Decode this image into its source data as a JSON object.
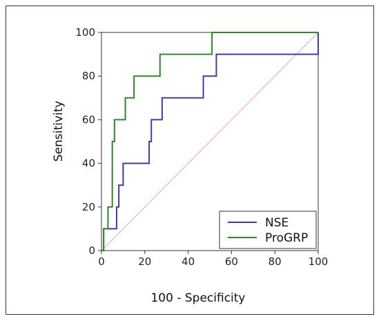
{
  "chart_data": {
    "type": "line",
    "title": "",
    "xlabel": "100 - Specificity",
    "ylabel": "Sensitivity",
    "xlim": [
      0,
      100
    ],
    "ylim": [
      0,
      100
    ],
    "xticks": [
      0,
      20,
      40,
      60,
      80,
      100
    ],
    "yticks": [
      0,
      20,
      40,
      60,
      80,
      100
    ],
    "grid": false,
    "legend_position": "bottom-right",
    "reference_line": {
      "from": [
        0,
        0
      ],
      "to": [
        100,
        100
      ],
      "color": "#e8a8a8"
    },
    "series": [
      {
        "name": "NSE",
        "color": "#3b3dab",
        "points": [
          [
            0,
            0
          ],
          [
            1,
            0
          ],
          [
            1,
            10
          ],
          [
            7,
            10
          ],
          [
            7,
            20
          ],
          [
            8,
            20
          ],
          [
            8,
            30
          ],
          [
            10,
            30
          ],
          [
            10,
            40
          ],
          [
            22,
            40
          ],
          [
            22,
            50
          ],
          [
            23,
            50
          ],
          [
            23,
            60
          ],
          [
            28,
            60
          ],
          [
            28,
            70
          ],
          [
            47,
            70
          ],
          [
            47,
            80
          ],
          [
            53,
            80
          ],
          [
            53,
            90
          ],
          [
            100,
            90
          ],
          [
            100,
            100
          ]
        ]
      },
      {
        "name": "ProGRP",
        "color": "#2c8a2c",
        "points": [
          [
            0,
            0
          ],
          [
            1,
            0
          ],
          [
            1,
            10
          ],
          [
            3,
            10
          ],
          [
            3,
            20
          ],
          [
            5,
            20
          ],
          [
            5,
            50
          ],
          [
            6,
            50
          ],
          [
            6,
            60
          ],
          [
            11,
            60
          ],
          [
            11,
            70
          ],
          [
            15,
            70
          ],
          [
            15,
            80
          ],
          [
            27,
            80
          ],
          [
            27,
            90
          ],
          [
            51,
            90
          ],
          [
            51,
            100
          ],
          [
            100,
            100
          ]
        ]
      }
    ]
  }
}
